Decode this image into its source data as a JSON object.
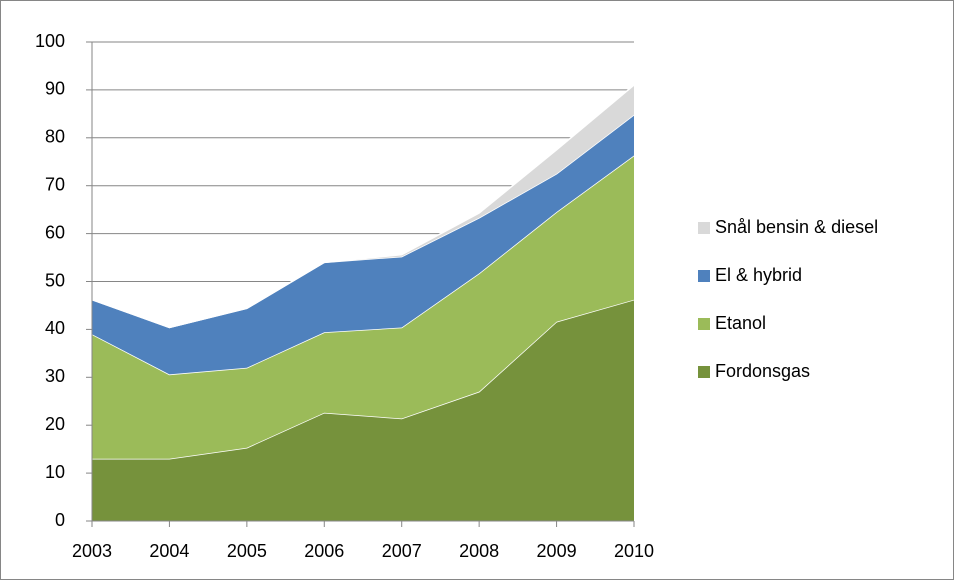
{
  "chart_data": {
    "type": "stacked_area",
    "categories": [
      "2003",
      "2004",
      "2005",
      "2006",
      "2007",
      "2008",
      "2009",
      "2010"
    ],
    "series": [
      {
        "name": "Fordonsgas",
        "color": "#76923c",
        "values": [
          13,
          13,
          15.3,
          22.6,
          21.4,
          27,
          41.6,
          46.2
        ]
      },
      {
        "name": "Etanol",
        "color": "#9bbb59",
        "values": [
          26,
          17.6,
          16.7,
          16.8,
          19,
          24.7,
          22.9,
          30.1
        ]
      },
      {
        "name": "El & hybrid",
        "color": "#4f81bd",
        "values": [
          7.2,
          9.8,
          12.4,
          14.6,
          14.8,
          11.6,
          8,
          8.5
        ]
      },
      {
        "name": "Snål bensin & diesel",
        "color": "#d9d9d9",
        "values": [
          0,
          0,
          0,
          0,
          0.4,
          1,
          5,
          6.2
        ]
      }
    ],
    "ylim": [
      0,
      100
    ],
    "yticks": [
      0,
      10,
      20,
      30,
      40,
      50,
      60,
      70,
      80,
      90,
      100
    ],
    "grid": true,
    "legend": "right"
  }
}
